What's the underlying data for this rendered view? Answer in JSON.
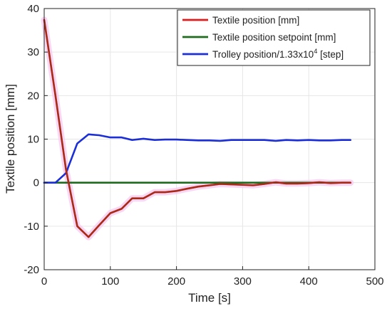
{
  "colors": {
    "textile": "#dd1c1c",
    "setpoint": "#1f6b1f",
    "trolley": "#1c2fd6",
    "grid": "#e6e6e6",
    "axis": "#222222",
    "highlight": "#f7c9f0"
  },
  "chart_data": {
    "type": "line",
    "xlabel": "Time [s]",
    "ylabel": "Textile position [mm]",
    "xlim": [
      0,
      500
    ],
    "ylim": [
      -20,
      40
    ],
    "xticks": [
      "0",
      "100",
      "200",
      "300",
      "400",
      "500"
    ],
    "yticks": [
      "-20",
      "-10",
      "0",
      "10",
      "20",
      "30",
      "40"
    ],
    "grid": true,
    "legend_position": "top-right",
    "series": [
      {
        "name": "Textile position [mm]",
        "name_sup": "",
        "name_suffix": "",
        "color": "#dd1c1c",
        "x": [
          0,
          17,
          33,
          50,
          67,
          83,
          100,
          117,
          133,
          150,
          167,
          183,
          200,
          216,
          233,
          250,
          266,
          283,
          300,
          316,
          333,
          350,
          366,
          383,
          400,
          416,
          433,
          450,
          463
        ],
        "y": [
          37.4,
          20.0,
          3.0,
          -10.0,
          -12.5,
          -9.8,
          -7.0,
          -6.0,
          -3.6,
          -3.6,
          -2.2,
          -2.2,
          -1.9,
          -1.4,
          -0.9,
          -0.6,
          -0.3,
          -0.4,
          -0.5,
          -0.6,
          -0.3,
          0.1,
          -0.2,
          -0.2,
          -0.1,
          0.1,
          -0.1,
          0.0,
          0.0
        ]
      },
      {
        "name": "Textile position setpoint [mm]",
        "name_sup": "",
        "name_suffix": "",
        "color": "#1f6b1f",
        "x": [
          0,
          463
        ],
        "y": [
          0,
          0
        ]
      },
      {
        "name": "Trolley position/1.33x10",
        "name_sup": "4",
        "name_suffix": " [step]",
        "color": "#1c2fd6",
        "x": [
          0,
          17,
          33,
          50,
          67,
          83,
          100,
          117,
          133,
          150,
          167,
          183,
          200,
          216,
          233,
          250,
          266,
          283,
          300,
          316,
          333,
          350,
          366,
          383,
          400,
          416,
          433,
          450,
          463
        ],
        "y": [
          0.0,
          0.0,
          2.2,
          9.0,
          11.1,
          10.9,
          10.4,
          10.4,
          9.8,
          10.1,
          9.8,
          9.9,
          9.9,
          9.8,
          9.7,
          9.7,
          9.6,
          9.8,
          9.8,
          9.8,
          9.8,
          9.6,
          9.8,
          9.7,
          9.8,
          9.7,
          9.7,
          9.8,
          9.8
        ]
      }
    ]
  }
}
